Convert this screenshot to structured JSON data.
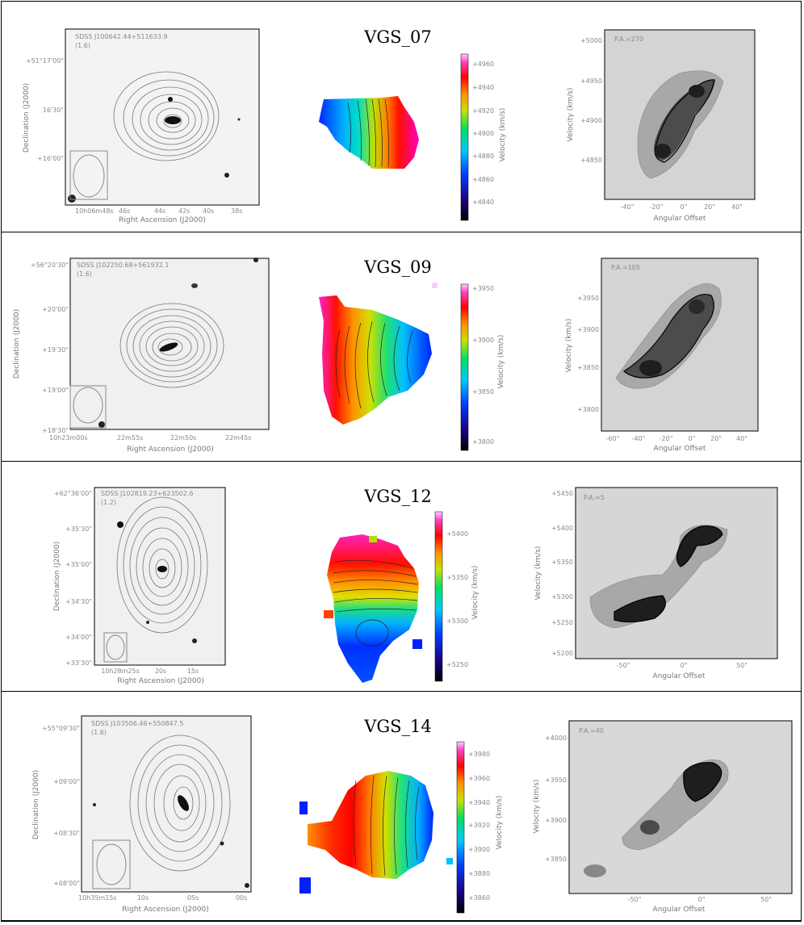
{
  "rows": [
    {
      "name": "VGS_07",
      "optical": {
        "id": "SDSS J100642.44+511633.9",
        "beam": "(1.6)",
        "xlabel": "Right Ascension (J2000)",
        "ylabel": "Declination (J2000)",
        "xticks": [
          "10h06m48s",
          "46s",
          "44s",
          "42s",
          "40s",
          "38s"
        ],
        "yticks": [
          "+51°17'00\"",
          "16'30\"",
          "+16'00\""
        ]
      },
      "colorbar": {
        "label": "Velocity (km/s)",
        "ticks": [
          "+4960",
          "+4940",
          "+4920",
          "+4900",
          "+4880",
          "+4860",
          "+4840"
        ]
      },
      "pv": {
        "pa": "P.A.=270",
        "xlabel": "Angular Offset",
        "ylabel": "Velocity (km/s)",
        "xticks": [
          "-40\"",
          "-20\"",
          "0\"",
          "20\"",
          "40\""
        ],
        "yticks": [
          "+5000",
          "+4950",
          "+4900",
          "+4850"
        ]
      }
    },
    {
      "name": "VGS_09",
      "optical": {
        "id": "SDSS J102250.68+561932.1",
        "beam": "(1.6)",
        "xlabel": "Right Ascension (J2000)",
        "ylabel": "Declination (J2000)",
        "xticks": [
          "10h23m00s",
          "22m55s",
          "22m50s",
          "22m45s"
        ],
        "yticks": [
          "+56°20'30\"",
          "+20'00\"",
          "+19'30\"",
          "+19'00\"",
          "+18'30\""
        ]
      },
      "colorbar": {
        "label": "Velocity (km/s)",
        "ticks": [
          "+3950",
          "+3900",
          "+3850",
          "+3800"
        ]
      },
      "pv": {
        "pa": "P.A.=105",
        "xlabel": "Angular Offset",
        "ylabel": "Velocity (km/s)",
        "xticks": [
          "-60\"",
          "-40\"",
          "-20\"",
          "0\"",
          "20\"",
          "40\""
        ],
        "yticks": [
          "+3950",
          "+3900",
          "+3850",
          "+3800"
        ]
      }
    },
    {
      "name": "VGS_12",
      "optical": {
        "id": "SDSS J102819.23+623502.6",
        "beam": "(1.2)",
        "xlabel": "Right Ascension (J2000)",
        "ylabel": "Declination (J2000)",
        "xticks": [
          "10h28m25s",
          "20s",
          "15s"
        ],
        "yticks": [
          "+62°36'00\"",
          "+35'30\"",
          "+35'00\"",
          "+34'30\"",
          "+34'00\"",
          "+33'30\""
        ]
      },
      "colorbar": {
        "label": "Velocity (km/s)",
        "ticks": [
          "+5400",
          "+5350",
          "+5300",
          "+5250"
        ]
      },
      "pv": {
        "pa": "P.A.=5",
        "xlabel": "Angular Offset",
        "ylabel": "Velocity (km/s)",
        "xticks": [
          "-50\"",
          "0\"",
          "50\""
        ],
        "yticks": [
          "+5450",
          "+5400",
          "+5350",
          "+5300",
          "+5250",
          "+5200"
        ]
      }
    },
    {
      "name": "VGS_14",
      "optical": {
        "id": "SDSS J103506.46+550847.5",
        "beam": "(1.6)",
        "xlabel": "Right Ascension (J2000)",
        "ylabel": "Declination (J2000)",
        "xticks": [
          "10h35m15s",
          "10s",
          "05s",
          "00s"
        ],
        "yticks": [
          "+55°09'30\"",
          "+09'00\"",
          "+08'30\"",
          "+08'00\""
        ]
      },
      "colorbar": {
        "label": "Velocity (km/s)",
        "ticks": [
          "+3980",
          "+3960",
          "+3940",
          "+3920",
          "+3900",
          "+3880",
          "+3860"
        ]
      },
      "pv": {
        "pa": "P.A.=40",
        "xlabel": "Angular Offset",
        "ylabel": "Velocity (km/s)",
        "xticks": [
          "-50\"",
          "0\"",
          "50\""
        ],
        "yticks": [
          "+4000",
          "+3950",
          "+3900",
          "+3850"
        ]
      }
    }
  ]
}
